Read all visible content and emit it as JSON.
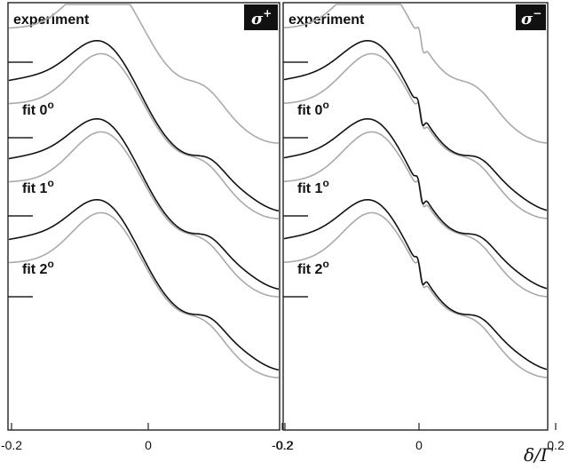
{
  "chart_data": {
    "type": "line",
    "xlabel": "δ/Γ",
    "x_range": [
      -0.34,
      0.32
    ],
    "x_ticks": [
      -0.2,
      0,
      0.2
    ],
    "x_tick_labels": [
      "-0.2",
      "0",
      "0.2"
    ],
    "grid": false,
    "legend": "none",
    "colors": {
      "measured": "#aaaaaa",
      "fit": "#111111",
      "badge_bg": "#111111"
    },
    "row_labels": [
      "experiment",
      "fit 0",
      "fit 1",
      "fit 2"
    ],
    "degree_symbol": "o",
    "panels": [
      {
        "polarization": "σ",
        "polarization_sign": "+"
      },
      {
        "polarization": "σ",
        "polarization_sign": "−"
      }
    ]
  }
}
